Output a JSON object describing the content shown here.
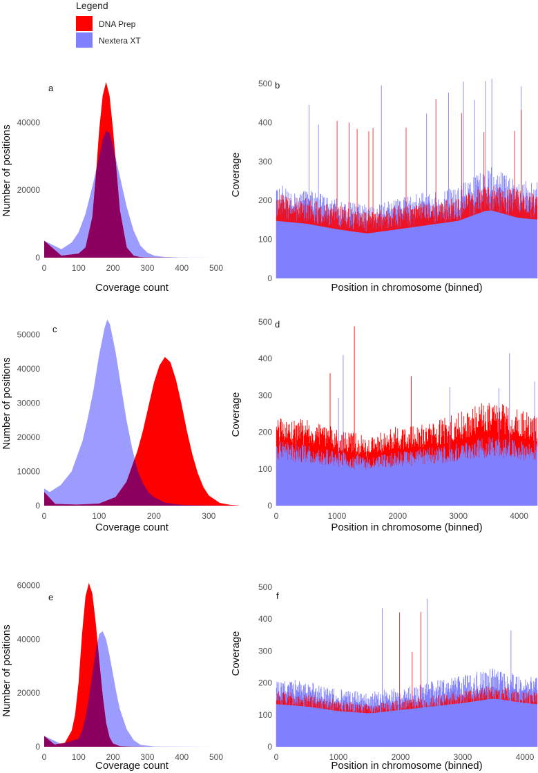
{
  "legend": {
    "title": "Legend",
    "items": [
      {
        "label": "DNA Prep",
        "color": "#ff0000"
      },
      {
        "label": "Nextera XT",
        "color": "#8080ff"
      }
    ],
    "overlap_color": "#8c0060"
  },
  "chart_data": [
    {
      "panel": "a",
      "type": "area",
      "xlabel": "Coverage count",
      "ylabel": "Number of positions",
      "xlim": [
        0,
        510
      ],
      "ylim": [
        0,
        55000
      ],
      "xticks": [
        0,
        100,
        200,
        300,
        400,
        500
      ],
      "yticks": [
        0,
        20000,
        40000
      ],
      "series": [
        {
          "name": "DNA Prep",
          "x": [
            0,
            50,
            100,
            120,
            140,
            150,
            160,
            170,
            180,
            190,
            200,
            210,
            220,
            240,
            260,
            280,
            300,
            350,
            400,
            500
          ],
          "y": [
            5000,
            600,
            1200,
            3000,
            12000,
            24000,
            38000,
            48000,
            52000,
            48000,
            38000,
            26000,
            14000,
            3000,
            600,
            150,
            50,
            20,
            10,
            0
          ]
        },
        {
          "name": "Nextera XT",
          "x": [
            0,
            50,
            80,
            100,
            120,
            140,
            160,
            170,
            180,
            190,
            200,
            220,
            240,
            260,
            280,
            300,
            320,
            350,
            400,
            500
          ],
          "y": [
            5000,
            2500,
            4500,
            7500,
            13000,
            21000,
            30000,
            35000,
            37500,
            37000,
            33000,
            24000,
            15000,
            8000,
            3500,
            1500,
            600,
            200,
            50,
            0
          ]
        }
      ]
    },
    {
      "panel": "b",
      "type": "bar",
      "xlabel": "Position in chromosome (binned)",
      "ylabel": "Coverage",
      "xlim": [
        0,
        4300
      ],
      "ylim": [
        0,
        530
      ],
      "xticks": [],
      "yticks": [
        0,
        100,
        200,
        300,
        400,
        500
      ],
      "series": [
        {
          "name": "DNA Prep",
          "baseline": [
            [
              0,
              185
            ],
            [
              500,
              175
            ],
            [
              1000,
              160
            ],
            [
              1500,
              145
            ],
            [
              2000,
              160
            ],
            [
              2500,
              165
            ],
            [
              3000,
              180
            ],
            [
              3500,
              205
            ],
            [
              4000,
              195
            ],
            [
              4300,
              185
            ]
          ]
        },
        {
          "name": "Nextera XT",
          "baseline": [
            [
              0,
              205
            ],
            [
              500,
              195
            ],
            [
              1000,
              175
            ],
            [
              1500,
              160
            ],
            [
              2000,
              175
            ],
            [
              2500,
              190
            ],
            [
              3000,
              205
            ],
            [
              3500,
              245
            ],
            [
              4000,
              215
            ],
            [
              4300,
              210
            ]
          ]
        }
      ]
    },
    {
      "panel": "c",
      "type": "area",
      "xlabel": "Coverage count",
      "ylabel": "Number of positions",
      "xlim": [
        0,
        355
      ],
      "ylim": [
        0,
        57000
      ],
      "xticks": [
        0,
        100,
        200,
        300
      ],
      "yticks": [
        0,
        10000,
        20000,
        30000,
        40000,
        50000
      ],
      "series": [
        {
          "name": "DNA Prep",
          "x": [
            0,
            20,
            60,
            100,
            130,
            150,
            170,
            180,
            190,
            200,
            210,
            220,
            230,
            240,
            250,
            260,
            270,
            280,
            290,
            300,
            320,
            340,
            355
          ],
          "y": [
            4000,
            500,
            300,
            600,
            2500,
            7000,
            16000,
            22000,
            29000,
            36000,
            41000,
            43500,
            42000,
            37000,
            30000,
            22000,
            15000,
            9500,
            5500,
            3000,
            800,
            200,
            50
          ]
        },
        {
          "name": "Nextera XT",
          "x": [
            0,
            10,
            30,
            50,
            70,
            80,
            90,
            100,
            110,
            115,
            120,
            130,
            140,
            150,
            160,
            170,
            180,
            190,
            200,
            220,
            250,
            300,
            355
          ],
          "y": [
            5000,
            4000,
            6000,
            10000,
            19000,
            26000,
            34000,
            44000,
            52000,
            54500,
            53000,
            45000,
            35000,
            25000,
            17000,
            10500,
            6500,
            4000,
            2500,
            900,
            250,
            40,
            0
          ]
        }
      ]
    },
    {
      "panel": "d",
      "type": "bar",
      "xlabel": "Position in chromosome (binned)",
      "ylabel": "Coverage",
      "xlim": [
        0,
        4300
      ],
      "ylim": [
        0,
        530
      ],
      "xticks": [
        0,
        1000,
        2000,
        3000,
        4000
      ],
      "yticks": [
        0,
        100,
        200,
        300,
        400,
        500
      ],
      "series": [
        {
          "name": "DNA Prep",
          "baseline": [
            [
              0,
              205
            ],
            [
              500,
              200
            ],
            [
              1000,
              180
            ],
            [
              1500,
              160
            ],
            [
              2000,
              185
            ],
            [
              2500,
              190
            ],
            [
              3000,
              215
            ],
            [
              3500,
              245
            ],
            [
              4000,
              225
            ],
            [
              4300,
              210
            ]
          ]
        },
        {
          "name": "Nextera XT",
          "baseline": [
            [
              0,
              150
            ],
            [
              500,
              140
            ],
            [
              1000,
              125
            ],
            [
              1500,
              115
            ],
            [
              2000,
              125
            ],
            [
              2500,
              135
            ],
            [
              3000,
              145
            ],
            [
              3500,
              160
            ],
            [
              4000,
              150
            ],
            [
              4300,
              145
            ]
          ]
        }
      ]
    },
    {
      "panel": "e",
      "type": "area",
      "xlabel": "Coverage count",
      "ylabel": "Number of positions",
      "xlim": [
        0,
        510
      ],
      "ylim": [
        0,
        63000
      ],
      "xticks": [
        0,
        100,
        200,
        300,
        400,
        500
      ],
      "yticks": [
        0,
        20000,
        40000,
        60000
      ],
      "series": [
        {
          "name": "DNA Prep",
          "x": [
            0,
            30,
            60,
            80,
            90,
            100,
            110,
            120,
            130,
            140,
            150,
            160,
            170,
            180,
            190,
            200,
            220,
            250,
            300,
            500
          ],
          "y": [
            4000,
            800,
            1500,
            6000,
            12000,
            24000,
            42000,
            56000,
            61000,
            57000,
            46000,
            32000,
            19000,
            9000,
            3500,
            1200,
            200,
            30,
            0,
            0
          ]
        },
        {
          "name": "Nextera XT",
          "x": [
            0,
            50,
            100,
            110,
            120,
            130,
            140,
            150,
            160,
            170,
            180,
            190,
            200,
            210,
            220,
            240,
            260,
            280,
            320,
            500
          ],
          "y": [
            4000,
            1000,
            3000,
            6000,
            11000,
            18000,
            27000,
            36000,
            42000,
            43000,
            40000,
            34000,
            27000,
            20000,
            14000,
            6500,
            2500,
            700,
            100,
            0
          ]
        }
      ]
    },
    {
      "panel": "f",
      "type": "bar",
      "xlabel": "Position in chromosome (binned)",
      "ylabel": "Coverage",
      "xlim": [
        0,
        4200
      ],
      "ylim": [
        0,
        530
      ],
      "xticks": [
        0,
        1000,
        2000,
        3000,
        4000
      ],
      "yticks": [
        0,
        100,
        200,
        300,
        400,
        500
      ],
      "series": [
        {
          "name": "DNA Prep",
          "baseline": [
            [
              0,
              150
            ],
            [
              500,
              140
            ],
            [
              1000,
              125
            ],
            [
              1500,
              115
            ],
            [
              2000,
              125
            ],
            [
              2500,
              135
            ],
            [
              3000,
              150
            ],
            [
              3500,
              165
            ],
            [
              4000,
              150
            ],
            [
              4200,
              150
            ]
          ]
        },
        {
          "name": "Nextera XT",
          "baseline": [
            [
              0,
              185
            ],
            [
              500,
              175
            ],
            [
              1000,
              155
            ],
            [
              1500,
              145
            ],
            [
              2000,
              160
            ],
            [
              2500,
              175
            ],
            [
              3000,
              190
            ],
            [
              3500,
              210
            ],
            [
              4000,
              190
            ],
            [
              4200,
              185
            ]
          ]
        }
      ]
    }
  ]
}
